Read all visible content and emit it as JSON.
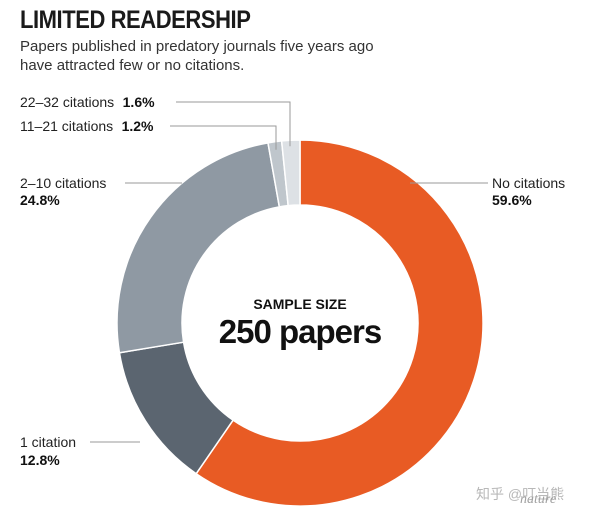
{
  "title": "LIMITED READERSHIP",
  "subtitle": "Papers published in predatory journals five years ago have attracted few or no citations.",
  "center": {
    "top": "SAMPLE SIZE",
    "main": "250 papers"
  },
  "credit": {
    "text": "知乎 @叮当熊",
    "brand": "nature"
  },
  "chart_data": {
    "type": "pie",
    "donut": true,
    "title": "LIMITED READERSHIP",
    "subtitle": "Papers published in predatory journals five years ago have attracted few or no citations.",
    "slices": [
      {
        "label": "No citations",
        "value": 59.6,
        "value_label": "59.6%",
        "color": "#e85b24"
      },
      {
        "label": "1 citation",
        "value": 12.8,
        "value_label": "12.8%",
        "color": "#5b6570"
      },
      {
        "label": "2–10 citations",
        "value": 24.8,
        "value_label": "24.8%",
        "color": "#8f99a3"
      },
      {
        "label": "11–21 citations",
        "value": 1.2,
        "value_label": "1.2%",
        "color": "#bfc6cc"
      },
      {
        "label": "22–32 citations",
        "value": 1.6,
        "value_label": "1.6%",
        "color": "#dde1e5"
      }
    ]
  }
}
